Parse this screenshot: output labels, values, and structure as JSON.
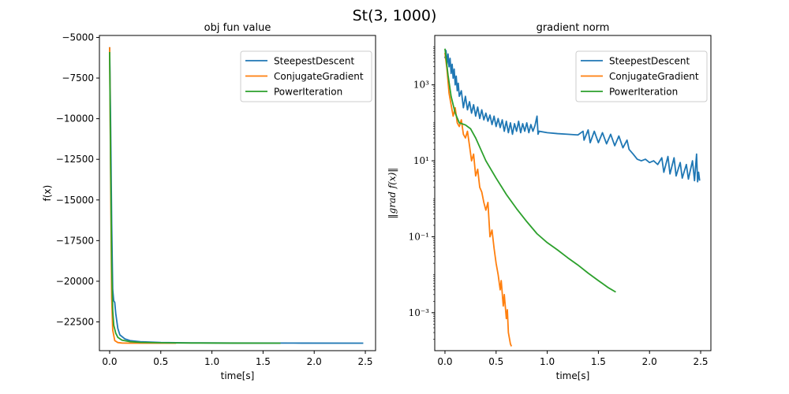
{
  "figure": {
    "suptitle": "St(3, 1000)"
  },
  "colors": {
    "SteepestDescent": "#1f77b4",
    "ConjugateGradient": "#ff7f0e",
    "PowerIteration": "#2ca02c"
  },
  "chart_data": [
    {
      "type": "line",
      "title": "obj fun value",
      "xlabel": "time[s]",
      "ylabel": "f(x)",
      "xlim": [
        -0.1,
        2.6
      ],
      "ylim": [
        -24270,
        -4880
      ],
      "xticks": [
        0.0,
        0.5,
        1.0,
        1.5,
        2.0,
        2.5
      ],
      "xtick_labels": [
        "0.0",
        "0.5",
        "1.0",
        "1.5",
        "2.0",
        "2.5"
      ],
      "yticks": [
        -5000,
        -7500,
        -10000,
        -12500,
        -15000,
        -17500,
        -20000,
        -22500
      ],
      "ytick_labels": [
        "−5000",
        "−7500",
        "−10000",
        "−12500",
        "−15000",
        "−17500",
        "−20000",
        "−22500"
      ],
      "legend": {
        "position": "top-right",
        "entries": [
          "SteepestDescent",
          "ConjugateGradient",
          "PowerIteration"
        ]
      },
      "series": [
        {
          "name": "SteepestDescent",
          "points": [
            [
              0.0,
              -5600
            ],
            [
              0.01,
              -10500
            ],
            [
              0.02,
              -16500
            ],
            [
              0.03,
              -20500
            ],
            [
              0.04,
              -21200
            ],
            [
              0.05,
              -21300
            ],
            [
              0.06,
              -22000
            ],
            [
              0.08,
              -22900
            ],
            [
              0.1,
              -23300
            ],
            [
              0.15,
              -23550
            ],
            [
              0.2,
              -23650
            ],
            [
              0.3,
              -23720
            ],
            [
              0.5,
              -23770
            ],
            [
              0.8,
              -23790
            ],
            [
              1.2,
              -23800
            ],
            [
              1.8,
              -23805
            ],
            [
              2.48,
              -23808
            ]
          ]
        },
        {
          "name": "ConjugateGradient",
          "points": [
            [
              0.0,
              -5600
            ],
            [
              0.01,
              -14000
            ],
            [
              0.02,
              -21000
            ],
            [
              0.03,
              -23000
            ],
            [
              0.05,
              -23650
            ],
            [
              0.08,
              -23770
            ],
            [
              0.12,
              -23800
            ],
            [
              0.2,
              -23808
            ],
            [
              0.4,
              -23810
            ],
            [
              0.65,
              -23810
            ]
          ]
        },
        {
          "name": "PowerIteration",
          "points": [
            [
              0.0,
              -5900
            ],
            [
              0.01,
              -13000
            ],
            [
              0.02,
              -19000
            ],
            [
              0.03,
              -21800
            ],
            [
              0.04,
              -22700
            ],
            [
              0.06,
              -23200
            ],
            [
              0.08,
              -23450
            ],
            [
              0.12,
              -23620
            ],
            [
              0.2,
              -23720
            ],
            [
              0.3,
              -23760
            ],
            [
              0.5,
              -23785
            ],
            [
              0.8,
              -23800
            ],
            [
              1.2,
              -23806
            ],
            [
              1.67,
              -23808
            ]
          ]
        }
      ]
    },
    {
      "type": "line",
      "title": "gradient norm",
      "xlabel": "time[s]",
      "ylabel": "‖grad f(x)‖",
      "yscale": "log",
      "xlim": [
        -0.1,
        2.6
      ],
      "ylim": [
        0.0001,
        20000
      ],
      "xticks": [
        0.0,
        0.5,
        1.0,
        1.5,
        2.0,
        2.5
      ],
      "xtick_labels": [
        "0.0",
        "0.5",
        "1.0",
        "1.5",
        "2.0",
        "2.5"
      ],
      "yticks": [
        1000,
        10,
        0.1,
        0.001
      ],
      "ytick_labels": [
        "10³",
        "10¹",
        "10⁻¹",
        "10⁻³"
      ],
      "legend": {
        "position": "top-right",
        "entries": [
          "SteepestDescent",
          "ConjugateGradient",
          "PowerIteration"
        ]
      },
      "series": [
        {
          "name": "SteepestDescent",
          "points": [
            [
              0.0,
              5000
            ],
            [
              0.01,
              8000
            ],
            [
              0.02,
              3500
            ],
            [
              0.03,
              6500
            ],
            [
              0.04,
              3000
            ],
            [
              0.05,
              5000
            ],
            [
              0.06,
              2000
            ],
            [
              0.07,
              3500
            ],
            [
              0.08,
              1500
            ],
            [
              0.09,
              2600
            ],
            [
              0.1,
              1000
            ],
            [
              0.11,
              1700
            ],
            [
              0.12,
              700
            ],
            [
              0.13,
              1100
            ],
            [
              0.14,
              500
            ],
            [
              0.16,
              700
            ],
            [
              0.18,
              250
            ],
            [
              0.2,
              500
            ],
            [
              0.22,
              220
            ],
            [
              0.24,
              360
            ],
            [
              0.26,
              180
            ],
            [
              0.28,
              300
            ],
            [
              0.3,
              150
            ],
            [
              0.32,
              260
            ],
            [
              0.34,
              130
            ],
            [
              0.36,
              220
            ],
            [
              0.38,
              120
            ],
            [
              0.4,
              180
            ],
            [
              0.42,
              110
            ],
            [
              0.44,
              160
            ],
            [
              0.46,
              90
            ],
            [
              0.48,
              150
            ],
            [
              0.5,
              80
            ],
            [
              0.52,
              130
            ],
            [
              0.54,
              75
            ],
            [
              0.56,
              120
            ],
            [
              0.58,
              60
            ],
            [
              0.6,
              110
            ],
            [
              0.62,
              55
            ],
            [
              0.64,
              100
            ],
            [
              0.66,
              50
            ],
            [
              0.68,
              95
            ],
            [
              0.7,
              60
            ],
            [
              0.72,
              110
            ],
            [
              0.74,
              55
            ],
            [
              0.76,
              95
            ],
            [
              0.78,
              60
            ],
            [
              0.8,
              100
            ],
            [
              0.82,
              55
            ],
            [
              0.84,
              90
            ],
            [
              0.86,
              60
            ],
            [
              0.88,
              85
            ],
            [
              0.9,
              150
            ],
            [
              0.91,
              50
            ],
            [
              0.92,
              60
            ],
            [
              1.0,
              55
            ],
            [
              1.1,
              52
            ],
            [
              1.2,
              50
            ],
            [
              1.3,
              48
            ],
            [
              1.35,
              60
            ],
            [
              1.36,
              35
            ],
            [
              1.4,
              65
            ],
            [
              1.42,
              30
            ],
            [
              1.46,
              60
            ],
            [
              1.5,
              30
            ],
            [
              1.54,
              55
            ],
            [
              1.58,
              28
            ],
            [
              1.62,
              50
            ],
            [
              1.66,
              25
            ],
            [
              1.7,
              45
            ],
            [
              1.74,
              22
            ],
            [
              1.78,
              35
            ],
            [
              1.8,
              20
            ],
            [
              1.84,
              15
            ],
            [
              1.88,
              11
            ],
            [
              1.92,
              10
            ],
            [
              1.96,
              11
            ],
            [
              2.0,
              9
            ],
            [
              2.04,
              10
            ],
            [
              2.08,
              8
            ],
            [
              2.12,
              12
            ],
            [
              2.14,
              5
            ],
            [
              2.18,
              13
            ],
            [
              2.2,
              4.5
            ],
            [
              2.24,
              12
            ],
            [
              2.26,
              4
            ],
            [
              2.3,
              9
            ],
            [
              2.32,
              3.5
            ],
            [
              2.36,
              8
            ],
            [
              2.38,
              3.3
            ],
            [
              2.42,
              10
            ],
            [
              2.44,
              3
            ],
            [
              2.46,
              15
            ],
            [
              2.47,
              2.8
            ],
            [
              2.48,
              5
            ],
            [
              2.49,
              3
            ]
          ]
        },
        {
          "name": "ConjugateGradient",
          "points": [
            [
              0.0,
              7000
            ],
            [
              0.02,
              2500
            ],
            [
              0.04,
              600
            ],
            [
              0.06,
              300
            ],
            [
              0.08,
              150
            ],
            [
              0.1,
              250
            ],
            [
              0.12,
              100
            ],
            [
              0.14,
              80
            ],
            [
              0.16,
              120
            ],
            [
              0.18,
              50
            ],
            [
              0.2,
              40
            ],
            [
              0.22,
              60
            ],
            [
              0.24,
              25
            ],
            [
              0.26,
              10
            ],
            [
              0.28,
              15
            ],
            [
              0.3,
              4
            ],
            [
              0.32,
              6
            ],
            [
              0.34,
              2
            ],
            [
              0.36,
              1.5
            ],
            [
              0.38,
              0.8
            ],
            [
              0.4,
              0.5
            ],
            [
              0.42,
              0.8
            ],
            [
              0.44,
              0.1
            ],
            [
              0.46,
              0.15
            ],
            [
              0.48,
              0.05
            ],
            [
              0.5,
              0.02
            ],
            [
              0.52,
              0.01
            ],
            [
              0.54,
              0.004
            ],
            [
              0.55,
              0.007
            ],
            [
              0.57,
              0.0015
            ],
            [
              0.58,
              0.003
            ],
            [
              0.6,
              0.0007
            ],
            [
              0.61,
              0.0012
            ],
            [
              0.62,
              0.0003
            ],
            [
              0.64,
              0.00015
            ],
            [
              0.65,
              0.00013
            ]
          ]
        },
        {
          "name": "PowerIteration",
          "points": [
            [
              0.0,
              9000
            ],
            [
              0.03,
              1800
            ],
            [
              0.06,
              500
            ],
            [
              0.1,
              180
            ],
            [
              0.14,
              100
            ],
            [
              0.2,
              88
            ],
            [
              0.25,
              70
            ],
            [
              0.3,
              40
            ],
            [
              0.35,
              20
            ],
            [
              0.4,
              10
            ],
            [
              0.5,
              3.5
            ],
            [
              0.6,
              1.3
            ],
            [
              0.7,
              0.55
            ],
            [
              0.8,
              0.25
            ],
            [
              0.9,
              0.12
            ],
            [
              1.0,
              0.07
            ],
            [
              1.1,
              0.045
            ],
            [
              1.2,
              0.028
            ],
            [
              1.3,
              0.018
            ],
            [
              1.4,
              0.011
            ],
            [
              1.5,
              0.007
            ],
            [
              1.6,
              0.0045
            ],
            [
              1.67,
              0.0035
            ]
          ]
        }
      ]
    }
  ]
}
